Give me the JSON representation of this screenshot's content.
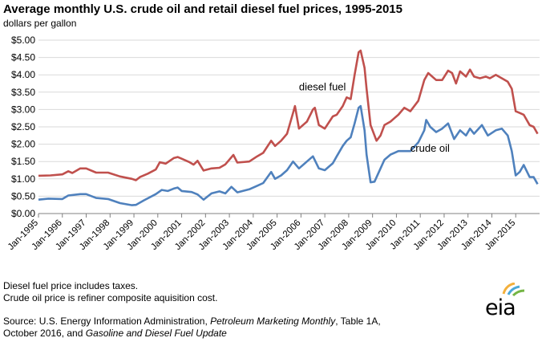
{
  "title": "Average monthly U.S. crude oil and retail diesel fuel prices, 1995-2015",
  "subtitle": "dollars per gallon",
  "notes": [
    "Diesel fuel price includes taxes.",
    "Crude oil price is refiner composite aquisition cost."
  ],
  "source": {
    "prefix": "Source: U.S. Energy Information Administration, ",
    "pub1": "Petroleum Marketing Monthly",
    "mid": ", Table 1A,",
    "line2_prefix": "October 2016, and ",
    "pub2": "Gasoline and Diesel Fuel Update"
  },
  "logo": {
    "text": "eia",
    "accent_colors": [
      "#f3b03c",
      "#4aa8d8",
      "#74b544"
    ]
  },
  "chart_data": {
    "type": "line",
    "title": "Average monthly U.S. crude oil and retail diesel fuel prices, 1995-2015",
    "ylabel": "dollars per gallon",
    "ylim": [
      0,
      5
    ],
    "yticks": [
      "$0.00",
      "$0.50",
      "$1.00",
      "$1.50",
      "$2.00",
      "$2.50",
      "$3.00",
      "$3.50",
      "$4.00",
      "$4.50",
      "$5.00"
    ],
    "xticks": [
      "Jan-1995",
      "Jan-1996",
      "Jan-1997",
      "Jan-1998",
      "Jan-1999",
      "Jan-2000",
      "Jan-2001",
      "Jan-2002",
      "Jan-2003",
      "Jan-2004",
      "Jan-2005",
      "Jan-2006",
      "Jan-2007",
      "Jan-2008",
      "Jan-2009",
      "Jan-2010",
      "Jan-2011",
      "Jan-2012",
      "Jan-2013",
      "Jan-2014",
      "Jan-2015"
    ],
    "grid": true,
    "series": [
      {
        "name": "diesel fuel",
        "color": "#c0504d",
        "points": [
          [
            "1995-01",
            1.09
          ],
          [
            "1995-07",
            1.1
          ],
          [
            "1996-01",
            1.13
          ],
          [
            "1996-04",
            1.22
          ],
          [
            "1996-06",
            1.17
          ],
          [
            "1996-10",
            1.3
          ],
          [
            "1997-01",
            1.3
          ],
          [
            "1997-06",
            1.18
          ],
          [
            "1997-12",
            1.18
          ],
          [
            "1998-06",
            1.07
          ],
          [
            "1998-12",
            1.0
          ],
          [
            "1999-02",
            0.96
          ],
          [
            "1999-04",
            1.05
          ],
          [
            "1999-08",
            1.15
          ],
          [
            "1999-12",
            1.27
          ],
          [
            "2000-02",
            1.48
          ],
          [
            "2000-05",
            1.44
          ],
          [
            "2000-09",
            1.6
          ],
          [
            "2000-11",
            1.63
          ],
          [
            "2001-01",
            1.58
          ],
          [
            "2001-05",
            1.48
          ],
          [
            "2001-07",
            1.41
          ],
          [
            "2001-09",
            1.52
          ],
          [
            "2001-12",
            1.24
          ],
          [
            "2002-04",
            1.3
          ],
          [
            "2002-08",
            1.32
          ],
          [
            "2002-11",
            1.42
          ],
          [
            "2003-03",
            1.69
          ],
          [
            "2003-05",
            1.47
          ],
          [
            "2003-11",
            1.5
          ],
          [
            "2004-03",
            1.65
          ],
          [
            "2004-06",
            1.75
          ],
          [
            "2004-10",
            2.1
          ],
          [
            "2004-12",
            1.95
          ],
          [
            "2005-03",
            2.1
          ],
          [
            "2005-06",
            2.3
          ],
          [
            "2005-09",
            2.9
          ],
          [
            "2005-10",
            3.1
          ],
          [
            "2005-12",
            2.45
          ],
          [
            "2006-04",
            2.65
          ],
          [
            "2006-07",
            3.0
          ],
          [
            "2006-08",
            3.05
          ],
          [
            "2006-10",
            2.55
          ],
          [
            "2007-01",
            2.45
          ],
          [
            "2007-05",
            2.8
          ],
          [
            "2007-07",
            2.85
          ],
          [
            "2007-10",
            3.1
          ],
          [
            "2007-12",
            3.35
          ],
          [
            "2008-02",
            3.3
          ],
          [
            "2008-04",
            4.0
          ],
          [
            "2008-06",
            4.65
          ],
          [
            "2008-07",
            4.7
          ],
          [
            "2008-09",
            4.2
          ],
          [
            "2008-10",
            3.6
          ],
          [
            "2008-12",
            2.55
          ],
          [
            "2009-03",
            2.1
          ],
          [
            "2009-05",
            2.25
          ],
          [
            "2009-07",
            2.55
          ],
          [
            "2009-10",
            2.65
          ],
          [
            "2009-12",
            2.75
          ],
          [
            "2010-02",
            2.85
          ],
          [
            "2010-05",
            3.05
          ],
          [
            "2010-08",
            2.95
          ],
          [
            "2010-12",
            3.25
          ],
          [
            "2011-03",
            3.85
          ],
          [
            "2011-05",
            4.05
          ],
          [
            "2011-09",
            3.85
          ],
          [
            "2011-12",
            3.85
          ],
          [
            "2012-03",
            4.12
          ],
          [
            "2012-05",
            4.05
          ],
          [
            "2012-07",
            3.75
          ],
          [
            "2012-09",
            4.1
          ],
          [
            "2012-12",
            3.95
          ],
          [
            "2013-02",
            4.15
          ],
          [
            "2013-04",
            3.95
          ],
          [
            "2013-07",
            3.9
          ],
          [
            "2013-10",
            3.95
          ],
          [
            "2013-12",
            3.9
          ],
          [
            "2014-03",
            4.0
          ],
          [
            "2014-06",
            3.9
          ],
          [
            "2014-09",
            3.8
          ],
          [
            "2014-11",
            3.6
          ],
          [
            "2015-01",
            2.95
          ],
          [
            "2015-03",
            2.9
          ],
          [
            "2015-05",
            2.85
          ],
          [
            "2015-08",
            2.55
          ],
          [
            "2015-10",
            2.5
          ],
          [
            "2015-12",
            2.3
          ]
        ]
      },
      {
        "name": "crude oil",
        "color": "#4f81bd",
        "points": [
          [
            "1995-01",
            0.4
          ],
          [
            "1995-06",
            0.43
          ],
          [
            "1996-01",
            0.42
          ],
          [
            "1996-04",
            0.52
          ],
          [
            "1996-10",
            0.56
          ],
          [
            "1997-01",
            0.56
          ],
          [
            "1997-06",
            0.45
          ],
          [
            "1997-12",
            0.42
          ],
          [
            "1998-06",
            0.3
          ],
          [
            "1998-12",
            0.24
          ],
          [
            "1999-02",
            0.25
          ],
          [
            "1999-06",
            0.38
          ],
          [
            "1999-12",
            0.56
          ],
          [
            "2000-03",
            0.68
          ],
          [
            "2000-06",
            0.65
          ],
          [
            "2000-09",
            0.72
          ],
          [
            "2000-11",
            0.75
          ],
          [
            "2001-01",
            0.65
          ],
          [
            "2001-06",
            0.62
          ],
          [
            "2001-09",
            0.55
          ],
          [
            "2001-12",
            0.4
          ],
          [
            "2002-04",
            0.58
          ],
          [
            "2002-08",
            0.64
          ],
          [
            "2002-11",
            0.58
          ],
          [
            "2003-02",
            0.77
          ],
          [
            "2003-05",
            0.61
          ],
          [
            "2003-11",
            0.7
          ],
          [
            "2004-03",
            0.8
          ],
          [
            "2004-06",
            0.88
          ],
          [
            "2004-10",
            1.2
          ],
          [
            "2004-12",
            1.0
          ],
          [
            "2005-03",
            1.1
          ],
          [
            "2005-06",
            1.25
          ],
          [
            "2005-09",
            1.5
          ],
          [
            "2005-12",
            1.3
          ],
          [
            "2006-04",
            1.5
          ],
          [
            "2006-07",
            1.65
          ],
          [
            "2006-10",
            1.3
          ],
          [
            "2007-01",
            1.25
          ],
          [
            "2007-05",
            1.45
          ],
          [
            "2007-07",
            1.65
          ],
          [
            "2007-10",
            1.95
          ],
          [
            "2007-12",
            2.1
          ],
          [
            "2008-02",
            2.2
          ],
          [
            "2008-04",
            2.6
          ],
          [
            "2008-06",
            3.05
          ],
          [
            "2008-07",
            3.1
          ],
          [
            "2008-09",
            2.4
          ],
          [
            "2008-10",
            1.7
          ],
          [
            "2008-12",
            0.9
          ],
          [
            "2009-02",
            0.92
          ],
          [
            "2009-05",
            1.3
          ],
          [
            "2009-07",
            1.55
          ],
          [
            "2009-10",
            1.7
          ],
          [
            "2009-12",
            1.75
          ],
          [
            "2010-02",
            1.8
          ],
          [
            "2010-05",
            1.8
          ],
          [
            "2010-08",
            1.8
          ],
          [
            "2010-12",
            2.05
          ],
          [
            "2011-03",
            2.4
          ],
          [
            "2011-04",
            2.7
          ],
          [
            "2011-06",
            2.5
          ],
          [
            "2011-09",
            2.35
          ],
          [
            "2011-12",
            2.45
          ],
          [
            "2012-03",
            2.6
          ],
          [
            "2012-06",
            2.15
          ],
          [
            "2012-09",
            2.4
          ],
          [
            "2012-12",
            2.25
          ],
          [
            "2013-02",
            2.45
          ],
          [
            "2013-04",
            2.3
          ],
          [
            "2013-08",
            2.55
          ],
          [
            "2013-11",
            2.25
          ],
          [
            "2014-03",
            2.4
          ],
          [
            "2014-06",
            2.45
          ],
          [
            "2014-09",
            2.25
          ],
          [
            "2014-11",
            1.8
          ],
          [
            "2015-01",
            1.1
          ],
          [
            "2015-03",
            1.2
          ],
          [
            "2015-05",
            1.4
          ],
          [
            "2015-08",
            1.05
          ],
          [
            "2015-10",
            1.05
          ],
          [
            "2015-12",
            0.85
          ]
        ]
      }
    ],
    "annotations": [
      {
        "text": "diesel fuel",
        "series": 0
      },
      {
        "text": "crude oil",
        "series": 1
      }
    ]
  }
}
